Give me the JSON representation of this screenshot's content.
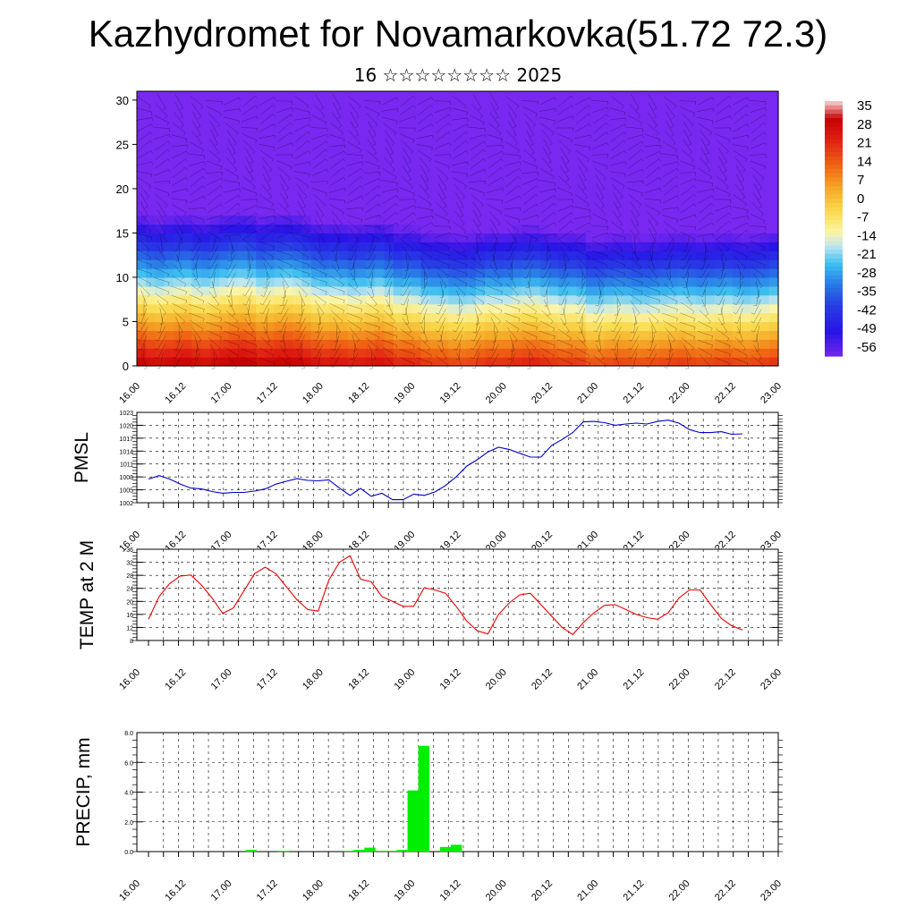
{
  "title": "Kazhydromet for Novamarkovka(51.72 72.3)",
  "subtitle": "16 ☆☆☆☆☆☆☆☆ 2025",
  "time_labels": [
    "16.00",
    "16.12",
    "17.00",
    "17.12",
    "18.00",
    "18.12",
    "19.00",
    "19.12",
    "20.00",
    "20.12",
    "21.00",
    "21.12",
    "22.00",
    "22.12",
    "23.00"
  ],
  "chart_data": [
    {
      "type": "heatmap",
      "name": "cross-section",
      "yticks": [
        0,
        5,
        10,
        15,
        20,
        25,
        30
      ],
      "ylim": [
        0,
        31
      ],
      "xlim": [
        0,
        42
      ],
      "colorbar_labels": [
        "35",
        "28",
        "21",
        "14",
        "7",
        "0",
        "-7",
        "-14",
        "-21",
        "-28",
        "-35",
        "-42",
        "-49",
        "-56"
      ],
      "surface_temps": [
        33,
        30,
        32,
        33,
        30,
        32,
        34,
        35,
        31,
        33,
        34,
        31,
        28,
        29,
        27,
        28,
        30,
        25,
        26,
        22,
        22,
        20,
        21,
        24,
        23,
        25,
        26,
        24,
        22,
        23,
        18,
        20,
        21,
        19,
        20,
        21,
        22,
        20,
        21,
        22,
        20,
        21,
        23
      ]
    },
    {
      "type": "line",
      "ylabel": "PMSL",
      "ylim": [
        1002,
        1023
      ],
      "yticks": [
        "1002",
        "1005",
        "1008",
        "1011",
        "1014",
        "1017",
        "1020",
        "1023"
      ],
      "color": "#0000cc",
      "values": [
        1007.5,
        1008.3,
        1007.5,
        1006.3,
        1005.4,
        1005.2,
        1004.6,
        1004.2,
        1004.4,
        1004.4,
        1004.7,
        1005.2,
        1006.3,
        1007.0,
        1007.6,
        1007.2,
        1007.1,
        1007.3,
        1005.4,
        1003.7,
        1005.3,
        1003.5,
        1004.2,
        1002.7,
        1002.7,
        1004.0,
        1003.7,
        1004.5,
        1006.0,
        1008.0,
        1010.5,
        1012.0,
        1013.8,
        1014.9,
        1014.4,
        1013.5,
        1012.6,
        1012.6,
        1015.3,
        1016.7,
        1018.3,
        1020.8,
        1020.9,
        1020.6,
        1020.0,
        1020.3,
        1020.5,
        1020.3,
        1020.9,
        1021.2,
        1020.5,
        1019.0,
        1018.3,
        1018.3,
        1018.5,
        1017.9,
        1018.0
      ]
    },
    {
      "type": "line",
      "ylabel": "TEMP at 2 M",
      "ylim": [
        8,
        36
      ],
      "yticks": [
        "8",
        "12",
        "16",
        "20",
        "24",
        "28",
        "32",
        "36"
      ],
      "color": "#ee0000",
      "values": [
        14.5,
        21.5,
        25.5,
        27.8,
        28.1,
        25.0,
        21.0,
        16.3,
        18.0,
        23.2,
        28.5,
        30.5,
        28.5,
        24.5,
        20.5,
        17.5,
        17.0,
        26.5,
        32.0,
        34.0,
        26.8,
        26.0,
        21.5,
        20.0,
        18.5,
        18.5,
        24.2,
        23.5,
        22.5,
        18.5,
        14.0,
        11.0,
        10.0,
        16.0,
        19.5,
        22.0,
        22.5,
        19.0,
        15.5,
        12.0,
        9.8,
        13.5,
        16.5,
        18.8,
        19.0,
        17.5,
        16.0,
        15.0,
        14.5,
        16.5,
        21.0,
        23.5,
        23.5,
        19.0,
        14.8,
        12.5,
        11.2
      ]
    },
    {
      "type": "bar",
      "ylabel": "PRECIP, mm",
      "ylim": [
        0,
        8
      ],
      "yticks": [
        "0.0",
        "2.0",
        "4.0",
        "6.0",
        "8.0"
      ],
      "color": "#00ee00",
      "values": [
        0,
        0,
        0,
        0,
        0,
        0,
        0,
        0,
        0,
        0.1,
        0,
        0,
        0.05,
        0,
        0,
        0,
        0,
        0,
        0.05,
        0.1,
        0.25,
        0.05,
        0.05,
        0.1,
        4.1,
        7.1,
        0,
        0.3,
        0.45,
        0,
        0,
        0,
        0,
        0,
        0,
        0,
        0,
        0,
        0,
        0,
        0,
        0,
        0,
        0,
        0,
        0,
        0,
        0,
        0,
        0,
        0,
        0,
        0,
        0,
        0,
        0
      ]
    }
  ]
}
